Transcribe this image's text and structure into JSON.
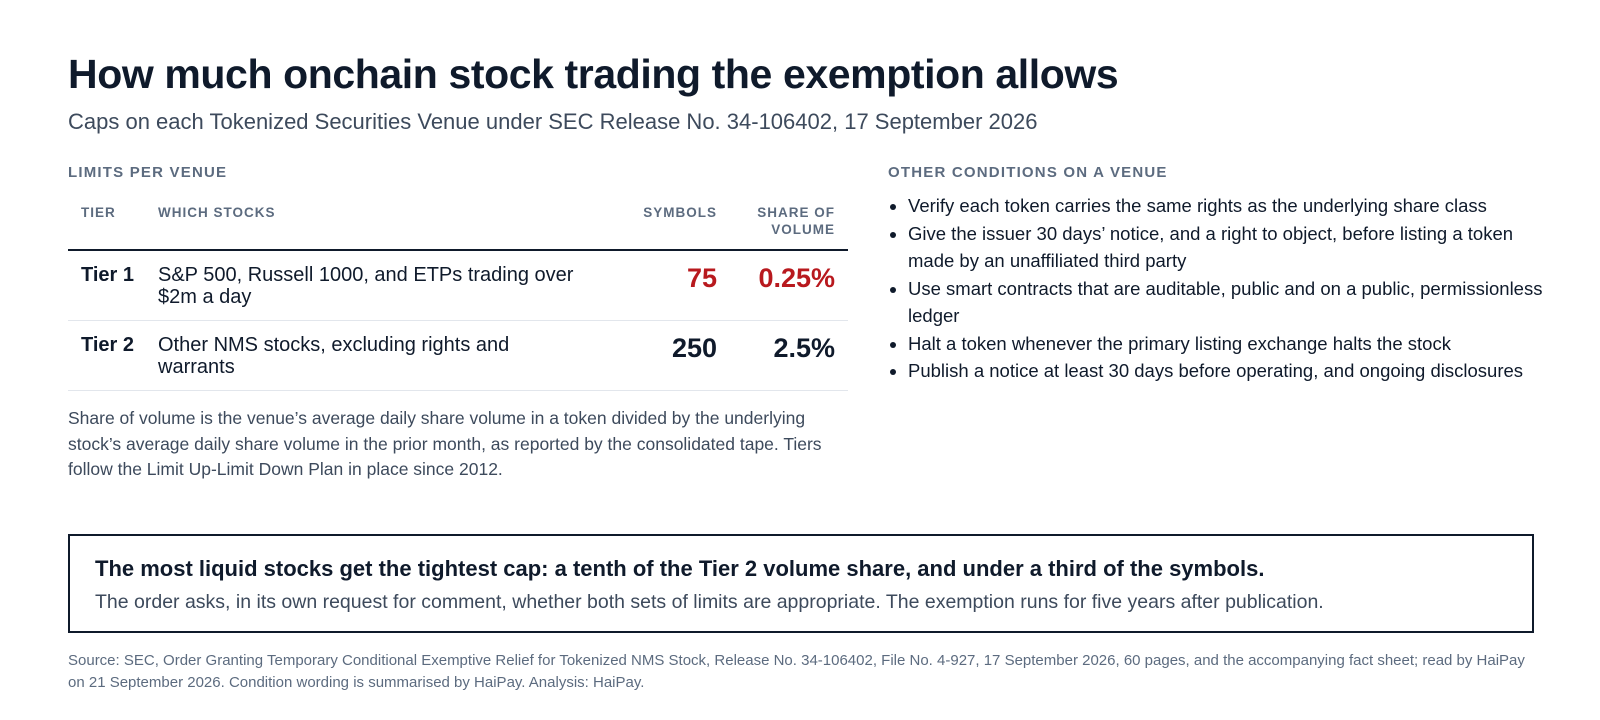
{
  "header": {
    "title": "How much onchain stock trading the exemption allows",
    "subtitle": "Caps on each Tokenized Securities Venue under SEC Release No. 34-106402, 17 September 2026"
  },
  "limits": {
    "section_label": "LIMITS PER VENUE",
    "columns": {
      "tier": "TIER",
      "which": "WHICH STOCKS",
      "symbols": "SYMBOLS",
      "share_line1": "SHARE OF",
      "share_line2": "VOLUME"
    },
    "rows": [
      {
        "tier": "Tier 1",
        "which": "S&P 500, Russell 1000, and ETPs trading over $2m a day",
        "symbols": "75",
        "share": "0.25%"
      },
      {
        "tier": "Tier 2",
        "which": "Other NMS stocks, excluding rights and warrants",
        "symbols": "250",
        "share": "2.5%"
      }
    ],
    "footnote": "Share of volume is the venue’s average daily share volume in a token divided by the underlying stock’s average daily share volume in the prior month, as reported by the consolidated tape. Tiers follow the Limit Up-Limit Down Plan in place since 2012."
  },
  "conditions": {
    "section_label": "OTHER CONDITIONS ON A VENUE",
    "items": [
      "Verify each token carries the same rights as the underlying share class",
      "Give the issuer 30 days’ notice, and a right to object, before listing a token made by an unaffiliated third party",
      "Use smart contracts that are auditable, public and on a public, permissionless ledger",
      "Halt a token whenever the primary listing exchange halts the stock",
      "Publish a notice at least 30 days before operating, and ongoing disclosures"
    ]
  },
  "callout": {
    "headline": "The most liquid stocks get the tightest cap: a tenth of the Tier 2 volume share, and under a third of the symbols.",
    "body": "The order asks, in its own request for comment, whether both sets of limits are appropriate. The exemption runs for five years after publication."
  },
  "source": "Source: SEC, Order Granting Temporary Conditional Exemptive Relief for Tokenized NMS Stock, Release No. 34-106402, File No. 4-927, 17 September 2026, 60 pages, and the accompanying fact sheet; read by HaiPay on 21 September 2026. Condition wording is summarised by HaiPay. Analysis: HaiPay.",
  "colors": {
    "accent_red": "#b8191e",
    "ink": "#0f1a2b",
    "muted": "#5c6b7f"
  }
}
